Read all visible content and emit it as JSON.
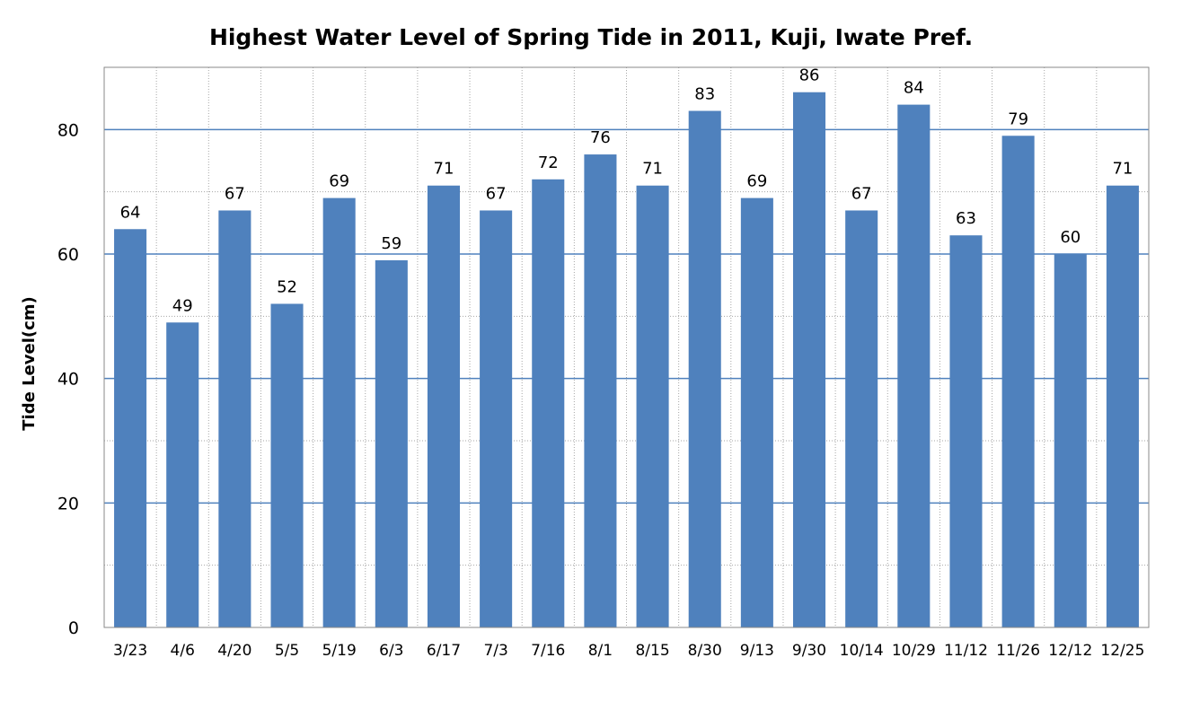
{
  "chart_data": {
    "type": "bar",
    "title": "Highest Water Level of Spring Tide in 2011,  Kuji, Iwate Pref.",
    "xlabel": "",
    "ylabel": "Tide Level(cm)",
    "ylim": [
      0,
      90
    ],
    "yticks": [
      0,
      20,
      40,
      60,
      80
    ],
    "grid": true,
    "legend": "none",
    "bar_color": "#4f81bd",
    "gridline_color": "#4f81bd",
    "categories": [
      "3/23",
      "4/6",
      "4/20",
      "5/5",
      "5/19",
      "6/3",
      "6/17",
      "7/3",
      "7/16",
      "8/1",
      "8/15",
      "8/30",
      "9/13",
      "9/30",
      "10/14",
      "10/29",
      "11/12",
      "11/26",
      "12/12",
      "12/25"
    ],
    "values": [
      64,
      49,
      67,
      52,
      69,
      59,
      71,
      67,
      72,
      76,
      71,
      83,
      69,
      86,
      67,
      84,
      63,
      79,
      60,
      71
    ]
  }
}
